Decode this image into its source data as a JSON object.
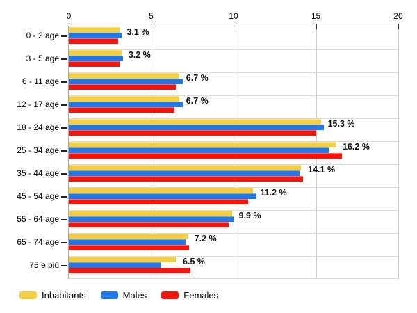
{
  "chart_data": {
    "type": "bar",
    "orientation": "horizontal",
    "categories": [
      "0 - 2 age",
      "3 - 5 age",
      "6 - 11 age",
      "12 - 17 age",
      "18 - 24 age",
      "25 - 34 age",
      "35 - 44 age",
      "45 - 54 age",
      "55 - 64 age",
      "65 - 74 age",
      "75 e più"
    ],
    "series": [
      {
        "name": "Inhabitants",
        "color": "#F6CE3E",
        "values": [
          3.1,
          3.2,
          6.7,
          6.7,
          15.3,
          16.2,
          14.1,
          11.2,
          9.9,
          7.2,
          6.5
        ]
      },
      {
        "name": "Males",
        "color": "#1E78F0",
        "values": [
          3.2,
          3.3,
          6.9,
          6.9,
          15.5,
          15.8,
          14.0,
          11.4,
          10.0,
          7.1,
          5.6
        ]
      },
      {
        "name": "Females",
        "color": "#F91407",
        "values": [
          3.0,
          3.1,
          6.5,
          6.4,
          15.0,
          16.6,
          14.2,
          10.9,
          9.7,
          7.3,
          7.4
        ]
      }
    ],
    "value_labels": [
      "3.1 %",
      "3.2 %",
      "6.7 %",
      "6.7 %",
      "15.3 %",
      "16.2 %",
      "14.1 %",
      "11.2 %",
      "9.9 %",
      "7.2 %",
      "6.5 %"
    ],
    "x_ticks": [
      "0",
      "5",
      "10",
      "15",
      "20"
    ],
    "xlim": [
      0,
      20
    ],
    "grid": true,
    "legend_position": "bottom"
  },
  "colors": {
    "background": "#FFFFFF",
    "axis_x": "#9A9A9A",
    "axis_y": "#ABABAB",
    "tick_mark": "#333333",
    "category_tick": "#222222",
    "vgrid": "#CCCCCC",
    "hgrid": "#DCDCDC",
    "label_text": "#000000",
    "value_text": "#111111"
  }
}
